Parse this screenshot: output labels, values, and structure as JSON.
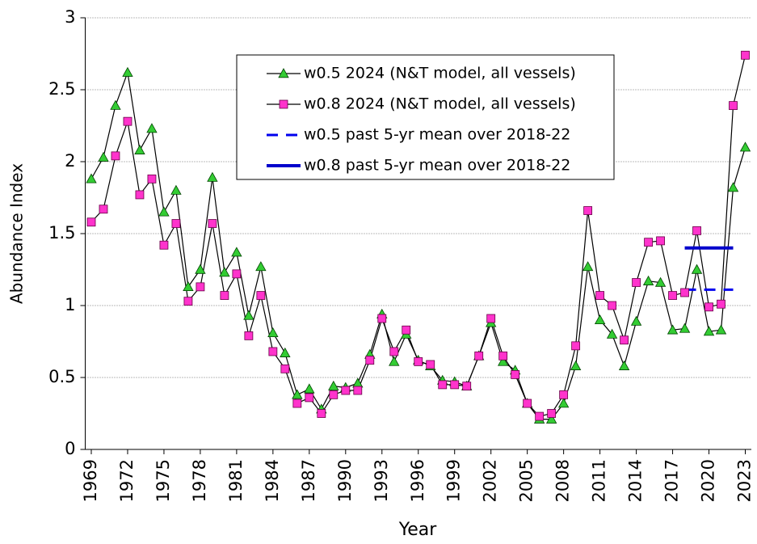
{
  "chart_data": {
    "type": "line",
    "x_label": "Year",
    "y_label": "Abundance Index",
    "x": [
      1969,
      1970,
      1971,
      1972,
      1973,
      1974,
      1975,
      1976,
      1977,
      1978,
      1979,
      1980,
      1981,
      1982,
      1983,
      1984,
      1985,
      1986,
      1987,
      1988,
      1989,
      1990,
      1991,
      1992,
      1993,
      1994,
      1995,
      1996,
      1997,
      1998,
      1999,
      2000,
      2001,
      2002,
      2003,
      2004,
      2005,
      2006,
      2007,
      2008,
      2009,
      2010,
      2011,
      2012,
      2013,
      2014,
      2015,
      2016,
      2017,
      2018,
      2019,
      2020,
      2021,
      2022,
      2023
    ],
    "xlim": [
      1968.5,
      2023.5
    ],
    "xticks": [
      1969,
      1972,
      1975,
      1978,
      1981,
      1984,
      1987,
      1990,
      1993,
      1996,
      1999,
      2002,
      2005,
      2008,
      2011,
      2014,
      2017,
      2020,
      2023
    ],
    "ylim": [
      0,
      3
    ],
    "yticks": [
      0,
      0.5,
      1,
      1.5,
      2,
      2.5,
      3
    ],
    "grid": true,
    "series": [
      {
        "name": "w0.5 2024 (N&T model, all vessels)",
        "color": "#33cc33",
        "marker": "triangle",
        "dash": false,
        "values": [
          1.88,
          2.03,
          2.39,
          2.62,
          2.08,
          2.23,
          1.65,
          1.8,
          1.13,
          1.25,
          1.89,
          1.23,
          1.37,
          0.93,
          1.27,
          0.81,
          0.67,
          0.38,
          0.42,
          0.28,
          0.44,
          0.43,
          0.46,
          0.66,
          0.94,
          0.61,
          0.8,
          0.62,
          0.58,
          0.48,
          0.47,
          0.44,
          0.65,
          0.88,
          0.61,
          0.55,
          0.32,
          0.21,
          0.21,
          0.32,
          0.58,
          1.27,
          0.9,
          0.8,
          0.58,
          0.89,
          1.17,
          1.16,
          0.83,
          0.84,
          1.25,
          0.82,
          0.83,
          1.82,
          2.1
        ]
      },
      {
        "name": "w0.8 2024 (N&T model, all vessels)",
        "color": "#ff33cc",
        "marker": "square",
        "dash": false,
        "values": [
          1.58,
          1.67,
          2.04,
          2.28,
          1.77,
          1.88,
          1.42,
          1.57,
          1.03,
          1.13,
          1.57,
          1.07,
          1.22,
          0.79,
          1.07,
          0.68,
          0.56,
          0.32,
          0.36,
          0.25,
          0.38,
          0.41,
          0.41,
          0.62,
          0.91,
          0.68,
          0.83,
          0.61,
          0.59,
          0.45,
          0.45,
          0.44,
          0.65,
          0.91,
          0.65,
          0.52,
          0.32,
          0.23,
          0.25,
          0.38,
          0.72,
          1.66,
          1.07,
          1.0,
          0.76,
          1.16,
          1.44,
          1.45,
          1.07,
          1.09,
          1.52,
          0.99,
          1.01,
          2.39,
          2.74
        ]
      },
      {
        "name": "w0.5 past 5-yr mean over 2018-22",
        "color": "#0000ee",
        "marker": null,
        "dash": true,
        "values": [
          null,
          null,
          null,
          null,
          null,
          null,
          null,
          null,
          null,
          null,
          null,
          null,
          null,
          null,
          null,
          null,
          null,
          null,
          null,
          null,
          null,
          null,
          null,
          null,
          null,
          null,
          null,
          null,
          null,
          null,
          null,
          null,
          null,
          null,
          null,
          null,
          null,
          null,
          null,
          null,
          null,
          null,
          null,
          null,
          null,
          null,
          null,
          null,
          null,
          1.11,
          1.11,
          1.11,
          1.11,
          1.11,
          null
        ]
      },
      {
        "name": "w0.8 past 5-yr mean over 2018-22",
        "color": "#0000cc",
        "marker": null,
        "dash": false,
        "values": [
          null,
          null,
          null,
          null,
          null,
          null,
          null,
          null,
          null,
          null,
          null,
          null,
          null,
          null,
          null,
          null,
          null,
          null,
          null,
          null,
          null,
          null,
          null,
          null,
          null,
          null,
          null,
          null,
          null,
          null,
          null,
          null,
          null,
          null,
          null,
          null,
          null,
          null,
          null,
          null,
          null,
          null,
          null,
          null,
          null,
          null,
          null,
          null,
          null,
          1.4,
          1.4,
          1.4,
          1.4,
          1.4,
          null
        ]
      }
    ]
  }
}
